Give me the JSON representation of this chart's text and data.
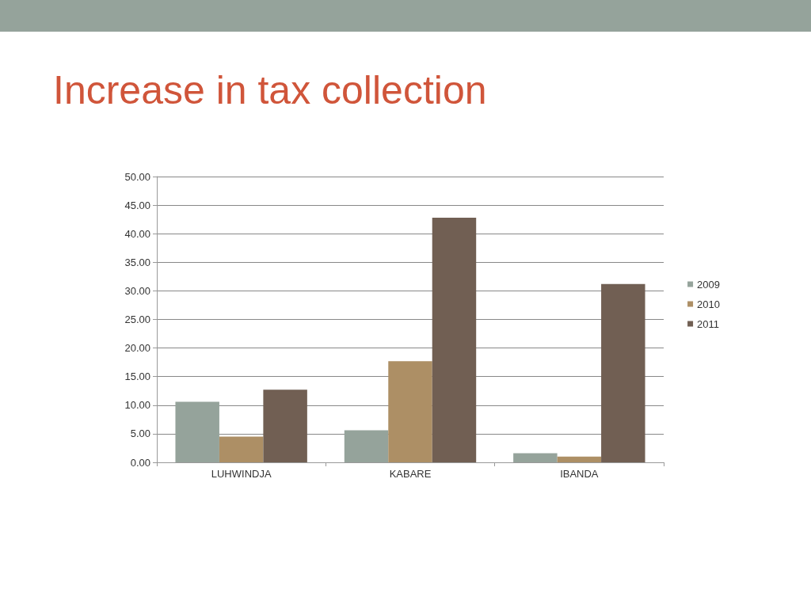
{
  "chart_data": {
    "type": "bar",
    "title": "Increase in tax collection",
    "categories": [
      "LUHWINDJA",
      "KABARE",
      "IBANDA"
    ],
    "series": [
      {
        "name": "2009",
        "color": "#95a39b",
        "values": [
          10.6,
          5.6,
          1.6
        ]
      },
      {
        "name": "2010",
        "color": "#ad8f65",
        "values": [
          4.5,
          17.7,
          1.0
        ]
      },
      {
        "name": "2011",
        "color": "#715f53",
        "values": [
          12.7,
          42.8,
          31.2
        ]
      }
    ],
    "ylim": [
      0,
      50
    ],
    "yticks": [
      {
        "value": 0,
        "label": "0.00"
      },
      {
        "value": 5,
        "label": "5.00"
      },
      {
        "value": 10,
        "label": "10.00"
      },
      {
        "value": 15,
        "label": "15.00"
      },
      {
        "value": 20,
        "label": "20.00"
      },
      {
        "value": 25,
        "label": "25.00"
      },
      {
        "value": 30,
        "label": "30.00"
      },
      {
        "value": 35,
        "label": "35.00"
      },
      {
        "value": 40,
        "label": "40.00"
      },
      {
        "value": 45,
        "label": "45.00"
      },
      {
        "value": 50,
        "label": "50.00"
      }
    ],
    "grid": "y",
    "legend": "right"
  }
}
